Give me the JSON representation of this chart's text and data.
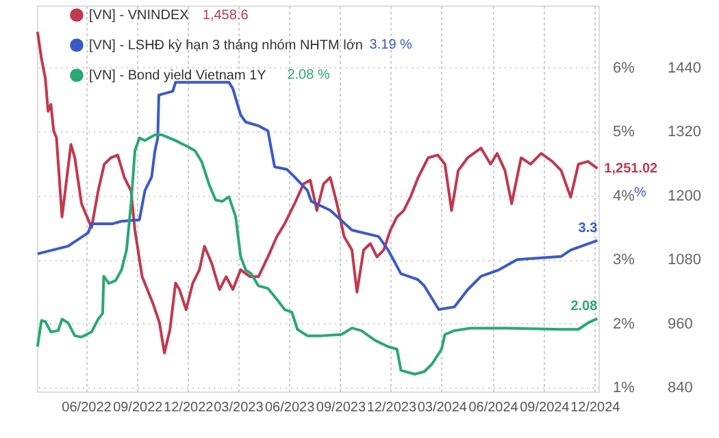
{
  "chart_data": {
    "type": "line",
    "y2label": "%",
    "xlim": [
      "2022-03-05",
      "2024-12-08"
    ],
    "xticks": [
      {
        "value": "2022-06",
        "label": "06/2022"
      },
      {
        "value": "2022-09",
        "label": "09/2022"
      },
      {
        "value": "2022-12",
        "label": "12/2022"
      },
      {
        "value": "2023-03",
        "label": "03/2023"
      },
      {
        "value": "2023-06",
        "label": "06/2023"
      },
      {
        "value": "2023-09",
        "label": "09/2023"
      },
      {
        "value": "2023-12",
        "label": "12/2023"
      },
      {
        "value": "2024-03",
        "label": "03/2024"
      },
      {
        "value": "2024-06",
        "label": "06/2024"
      },
      {
        "value": "2024-09",
        "label": "09/2024"
      },
      {
        "value": "2024-12",
        "label": "12/2024"
      }
    ],
    "ylim": [
      832.8,
      1556.4
    ],
    "yticks": [
      840,
      960,
      1080,
      1200,
      1320,
      1440
    ],
    "y2lim": [
      0.94,
      6.97
    ],
    "y2ticks": [
      {
        "value": 1,
        "label": "1%"
      },
      {
        "value": 2,
        "label": "2%"
      },
      {
        "value": 3,
        "label": "3%"
      },
      {
        "value": 4,
        "label": "4%"
      },
      {
        "value": 5,
        "label": "5%"
      },
      {
        "value": 6,
        "label": "6%"
      }
    ],
    "grid": true,
    "legend": "top left",
    "marker": "none",
    "line_style": "solid",
    "annotations": [
      "1,458.6",
      "3.19 %",
      "2.08 %"
    ],
    "series": [
      {
        "name": "[VN] - VNINDEX",
        "color": "#c0394f",
        "axis": "y",
        "x": [
          "2022-03-06",
          "2022-03-13",
          "2022-03-20",
          "2022-03-25",
          "2022-03-30",
          "2022-04-04",
          "2022-04-09",
          "2022-04-19",
          "2022-05-05",
          "2022-05-12",
          "2022-05-24",
          "2022-06-11",
          "2022-06-23",
          "2022-07-04",
          "2022-07-16",
          "2022-07-28",
          "2022-08-09",
          "2022-08-21",
          "2022-08-28",
          "2022-09-10",
          "2022-09-29",
          "2022-10-11",
          "2022-10-20",
          "2022-10-30",
          "2022-11-09",
          "2022-11-16",
          "2022-11-28",
          "2022-12-10",
          "2022-12-22",
          "2022-12-31",
          "2023-01-13",
          "2023-01-27",
          "2023-02-08",
          "2023-02-20",
          "2023-03-06",
          "2023-03-23",
          "2023-04-07",
          "2023-04-24",
          "2023-05-10",
          "2023-05-24",
          "2023-06-11",
          "2023-06-27",
          "2023-07-09",
          "2023-07-21",
          "2023-08-02",
          "2023-08-14",
          "2023-08-26",
          "2023-09-08",
          "2023-09-22",
          "2023-10-01",
          "2023-10-13",
          "2023-10-25",
          "2023-11-06",
          "2023-11-18",
          "2023-11-30",
          "2023-12-12",
          "2023-12-24",
          "2024-01-05",
          "2024-01-19",
          "2024-02-06",
          "2024-02-23",
          "2024-03-07",
          "2024-03-19",
          "2024-03-31",
          "2024-04-17",
          "2024-05-11",
          "2024-05-28",
          "2024-06-09",
          "2024-06-23",
          "2024-07-05",
          "2024-07-22",
          "2024-08-08",
          "2024-08-27",
          "2024-09-16",
          "2024-10-02",
          "2024-10-19",
          "2024-11-02",
          "2024-11-19",
          "2024-12-06"
        ],
        "values": [
          1507,
          1457,
          1420,
          1358,
          1371,
          1321,
          1309,
          1160,
          1296,
          1271,
          1185,
          1140,
          1209,
          1259,
          1271,
          1276,
          1234,
          1209,
          1135,
          1048,
          999,
          962,
          905,
          949,
          1036,
          1024,
          986,
          1036,
          1061,
          1105,
          1073,
          1024,
          1048,
          1024,
          1061,
          1048,
          1048,
          1085,
          1123,
          1147,
          1185,
          1222,
          1229,
          1172,
          1222,
          1234,
          1185,
          1123,
          1098,
          1019,
          1098,
          1110,
          1085,
          1098,
          1135,
          1160,
          1172,
          1197,
          1234,
          1271,
          1276,
          1259,
          1172,
          1247,
          1271,
          1289,
          1259,
          1279,
          1247,
          1185,
          1271,
          1259,
          1279,
          1264,
          1247,
          1197,
          1259,
          1264,
          1251.02
        ],
        "value_labels": [
          null,
          null,
          null,
          null,
          null,
          null,
          null,
          null,
          null,
          null,
          null,
          null,
          null,
          null,
          null,
          null,
          null,
          null,
          null,
          null,
          null,
          null,
          null,
          null,
          null,
          null,
          null,
          null,
          null,
          null,
          null,
          null,
          null,
          null,
          null,
          null,
          null,
          null,
          null,
          null,
          null,
          null,
          null,
          null,
          null,
          null,
          null,
          null,
          null,
          null,
          null,
          null,
          null,
          null,
          null,
          null,
          null,
          null,
          null,
          null,
          null,
          null,
          null,
          null,
          null,
          null,
          null,
          null,
          null,
          null,
          null,
          null,
          null,
          null,
          null,
          null,
          null,
          null,
          "1,251.02"
        ]
      },
      {
        "name": "[VN] - LSHĐ kỳ hạn 3 tháng nhóm NHTM lớn",
        "color": "#3a5bc7",
        "axis": "y2",
        "x": [
          "2022-03-06",
          "2022-04-30",
          "2022-06-05",
          "2022-06-11",
          "2022-07-19",
          "2022-08-04",
          "2022-09-05",
          "2022-09-15",
          "2022-09-27",
          "2022-10-03",
          "2022-10-08",
          "2022-10-10",
          "2022-11-04",
          "2022-11-09",
          "2023-02-13",
          "2023-02-20",
          "2023-03-06",
          "2023-03-15",
          "2023-04-07",
          "2023-04-24",
          "2023-05-06",
          "2023-05-28",
          "2023-06-11",
          "2023-07-04",
          "2023-07-11",
          "2023-08-14",
          "2023-09-22",
          "2023-11-09",
          "2023-11-26",
          "2023-12-19",
          "2024-01-18",
          "2024-01-30",
          "2024-02-25",
          "2024-03-24",
          "2024-04-17",
          "2024-05-11",
          "2024-06-12",
          "2024-07-15",
          "2024-10-02",
          "2024-10-19",
          "2024-12-06"
        ],
        "values": [
          3.09,
          3.21,
          3.42,
          3.56,
          3.56,
          3.6,
          3.62,
          4.08,
          4.29,
          4.7,
          4.9,
          5.57,
          5.63,
          5.77,
          5.77,
          5.67,
          5.26,
          5.15,
          5.09,
          5.01,
          4.45,
          4.41,
          4.29,
          4.08,
          3.91,
          3.77,
          3.46,
          3.36,
          3.15,
          2.78,
          2.69,
          2.59,
          2.22,
          2.26,
          2.53,
          2.74,
          2.84,
          3.0,
          3.05,
          3.15,
          3.3
        ],
        "value_labels": [
          null,
          null,
          null,
          null,
          null,
          null,
          null,
          null,
          null,
          null,
          null,
          null,
          null,
          null,
          null,
          null,
          null,
          null,
          null,
          null,
          null,
          null,
          null,
          null,
          null,
          null,
          null,
          null,
          null,
          null,
          null,
          null,
          null,
          null,
          null,
          null,
          null,
          null,
          null,
          null,
          "3.3"
        ]
      },
      {
        "name": "[VN] - Bond yield Vietnam 1Y",
        "color": "#2aa876",
        "axis": "y2",
        "x": [
          "2022-03-06",
          "2022-03-13",
          "2022-03-20",
          "2022-03-30",
          "2022-04-12",
          "2022-04-19",
          "2022-04-30",
          "2022-05-12",
          "2022-05-24",
          "2022-06-11",
          "2022-06-23",
          "2022-07-01",
          "2022-07-03",
          "2022-07-12",
          "2022-07-24",
          "2022-08-04",
          "2022-08-13",
          "2022-08-21",
          "2022-08-28",
          "2022-09-05",
          "2022-09-15",
          "2022-10-03",
          "2022-10-15",
          "2022-11-09",
          "2022-12-02",
          "2022-12-14",
          "2022-12-26",
          "2023-01-08",
          "2023-01-20",
          "2023-02-01",
          "2023-02-13",
          "2023-02-25",
          "2023-03-06",
          "2023-03-15",
          "2023-03-25",
          "2023-04-07",
          "2023-04-24",
          "2023-05-10",
          "2023-05-24",
          "2023-06-06",
          "2023-06-16",
          "2023-07-04",
          "2023-07-29",
          "2023-09-03",
          "2023-09-22",
          "2023-10-09",
          "2023-11-02",
          "2023-11-26",
          "2023-12-12",
          "2023-12-19",
          "2024-01-13",
          "2024-01-30",
          "2024-02-13",
          "2024-03-01",
          "2024-03-07",
          "2024-03-24",
          "2024-04-22",
          "2024-06-28",
          "2024-10-02",
          "2024-11-02",
          "2024-11-19",
          "2024-12-06"
        ],
        "values": [
          1.64,
          2.05,
          2.03,
          1.87,
          1.89,
          2.07,
          2.01,
          1.81,
          1.79,
          1.87,
          2.07,
          2.16,
          2.74,
          2.63,
          2.67,
          2.84,
          3.15,
          3.87,
          4.7,
          4.9,
          4.86,
          4.95,
          4.95,
          4.86,
          4.76,
          4.7,
          4.53,
          4.18,
          3.93,
          3.91,
          3.98,
          3.67,
          3.05,
          2.84,
          2.78,
          2.59,
          2.55,
          2.38,
          2.22,
          2.18,
          1.91,
          1.81,
          1.81,
          1.83,
          1.93,
          1.89,
          1.74,
          1.64,
          1.6,
          1.27,
          1.21,
          1.25,
          1.37,
          1.6,
          1.83,
          1.89,
          1.93,
          1.93,
          1.91,
          1.91,
          2.01,
          2.08
        ],
        "value_labels": [
          null,
          null,
          null,
          null,
          null,
          null,
          null,
          null,
          null,
          null,
          null,
          null,
          null,
          null,
          null,
          null,
          null,
          null,
          null,
          null,
          null,
          null,
          null,
          null,
          null,
          null,
          null,
          null,
          null,
          null,
          null,
          null,
          null,
          null,
          null,
          null,
          null,
          null,
          null,
          null,
          null,
          null,
          null,
          null,
          null,
          null,
          null,
          null,
          null,
          null,
          null,
          null,
          null,
          null,
          null,
          null,
          null,
          null,
          null,
          null,
          null,
          "2.08"
        ]
      }
    ]
  }
}
